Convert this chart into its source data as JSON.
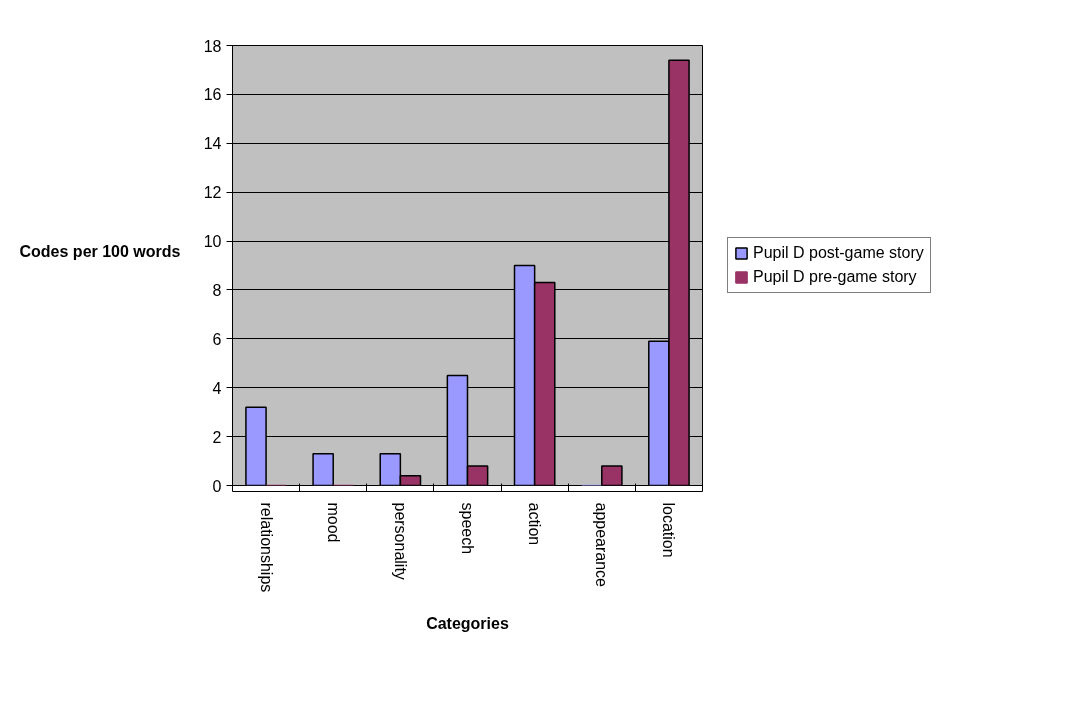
{
  "chart_data": {
    "type": "bar",
    "xlabel": "Categories",
    "ylabel": "Codes per 100 words",
    "categories": [
      "relationships",
      "mood",
      "personality",
      "speech",
      "action",
      "appearance",
      "location"
    ],
    "series": [
      {
        "name": "Pupil D post-game story",
        "color": "#9999ff",
        "values": [
          3.2,
          1.3,
          1.3,
          4.5,
          9.0,
          0,
          5.9
        ]
      },
      {
        "name": "Pupil D pre-game story",
        "color": "#993366",
        "values": [
          0,
          0,
          0.4,
          0.8,
          8.3,
          0.8,
          17.4
        ]
      }
    ],
    "ylim": [
      0,
      18
    ],
    "yticks": [
      0,
      2,
      4,
      6,
      8,
      10,
      12,
      14,
      16,
      18
    ],
    "grid": "y",
    "legend": "right"
  }
}
